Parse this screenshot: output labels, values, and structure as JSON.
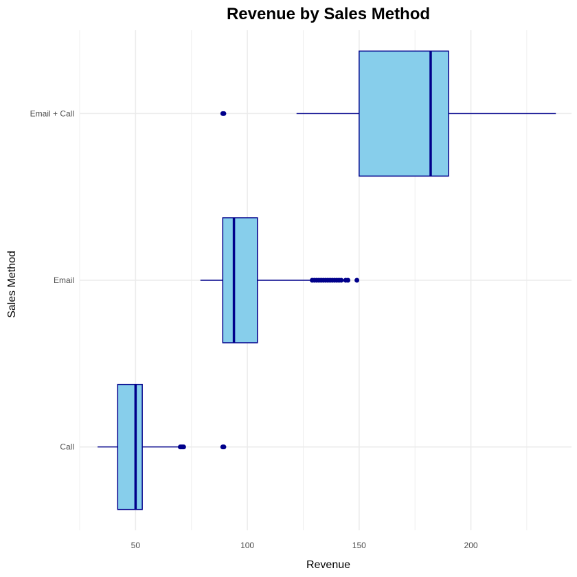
{
  "chart_data": {
    "type": "box",
    "orientation": "horizontal",
    "title": "Revenue by Sales Method",
    "xlabel": "Revenue",
    "ylabel": "Sales Method",
    "xlim": [
      25,
      245
    ],
    "xticks": [
      50,
      100,
      150,
      200
    ],
    "grid": true,
    "legend": "none",
    "categories": [
      "Call",
      "Email",
      "Email + Call"
    ],
    "boxes": [
      {
        "category": "Call",
        "whisker_low": 33,
        "q1": 42,
        "median": 50,
        "q3": 53,
        "whisker_high": 70,
        "outliers": [
          70,
          70.5,
          71,
          71.5,
          89,
          89.5
        ]
      },
      {
        "category": "Email",
        "whisker_low": 79,
        "q1": 89,
        "median": 94,
        "q3": 104.5,
        "whisker_high": 128,
        "outliers": [
          129,
          130,
          131,
          132,
          133,
          134,
          135,
          136,
          137,
          138,
          139,
          140,
          141,
          142,
          144,
          145,
          149
        ]
      },
      {
        "category": "Email + Call",
        "whisker_low": 122,
        "q1": 150,
        "median": 182,
        "q3": 190,
        "whisker_high": 238,
        "outliers": [
          89,
          89.5
        ]
      }
    ]
  },
  "colors": {
    "box_fill": "#87ceeb",
    "box_stroke": "#00008b",
    "grid": "#ebebeb",
    "text": "#4d4d4d",
    "title": "#000000"
  }
}
